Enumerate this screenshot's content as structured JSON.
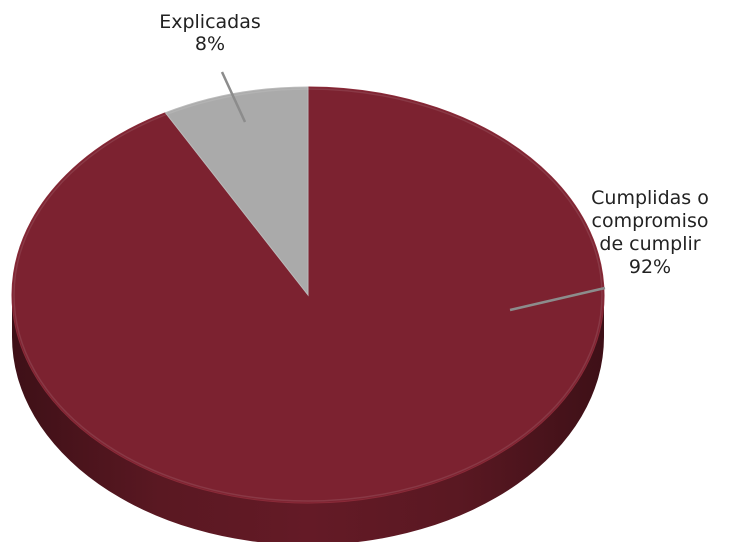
{
  "chart_data": {
    "type": "pie",
    "style": "3d",
    "slices": [
      {
        "label_lines": [
          "Cumplidas o",
          "compromiso",
          "de cumplir"
        ],
        "value": 92,
        "value_label": "92%",
        "color": "#7c2230"
      },
      {
        "label_lines": [
          "Explicadas"
        ],
        "value": 8,
        "value_label": "8%",
        "color": "#aaaaaa"
      }
    ],
    "legend": "none",
    "data_labels": "outside-with-leader-lines"
  }
}
